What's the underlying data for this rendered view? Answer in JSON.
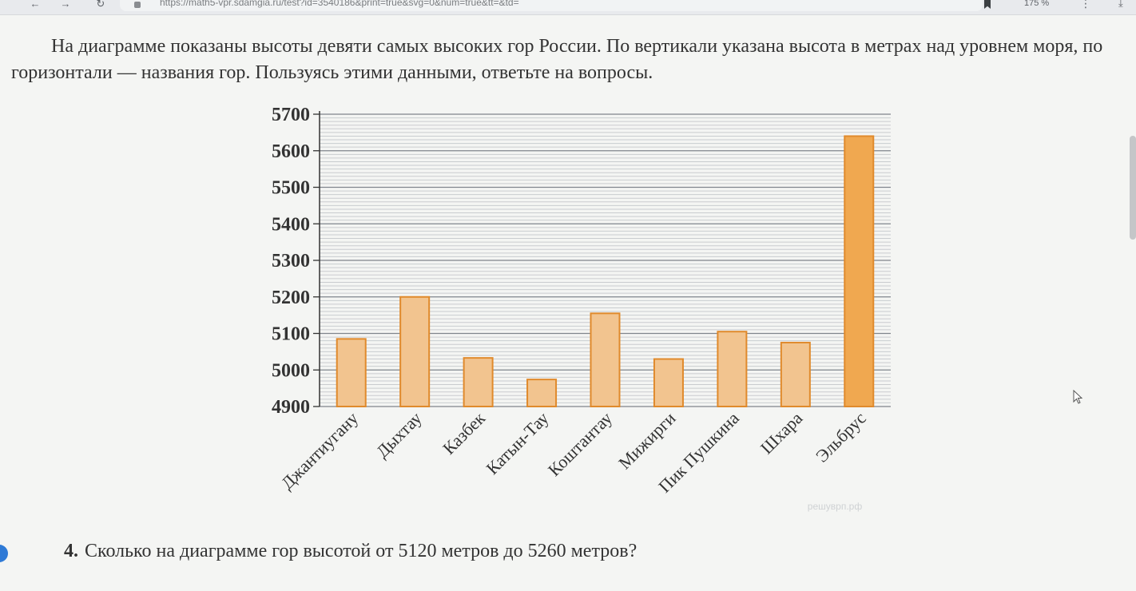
{
  "browser": {
    "url": "https://math5-vpr.sdamgia.ru/test?id=3540186&print=true&svg=0&num=true&tt=&td=",
    "zoom": "175 %"
  },
  "intro_text": "На диаграмме показаны высоты девяти самых высоких гор России. По вертикали указана высота в метрах над уровнем моря, по горизонтали — названия гор. Пользуясь этими данными, ответьте на вопросы.",
  "question": {
    "number": "4.",
    "text": "Сколько на диаграмме гор высотой от 5120 метров до 5260 метров?"
  },
  "chart_data": {
    "type": "bar",
    "categories": [
      "Джантиугану",
      "Дыхтау",
      "Казбек",
      "Катын-Тау",
      "Коштантау",
      "Мижирги",
      "Пик Пушкина",
      "Шхара",
      "Эльбрус"
    ],
    "values": [
      5085,
      5200,
      5033,
      4974,
      5155,
      5030,
      5105,
      5075,
      5640
    ],
    "ylim": [
      4900,
      5700
    ],
    "yticks": [
      4900,
      5000,
      5100,
      5200,
      5300,
      5400,
      5500,
      5600,
      5700
    ],
    "minor_step": 10,
    "xlabel": "",
    "ylabel": "",
    "grid": true,
    "bar_color": "#f2c48f",
    "bar_edge": "#e08a2c",
    "highlight_color": "#f0a850",
    "watermark": "решуврп.рф"
  }
}
